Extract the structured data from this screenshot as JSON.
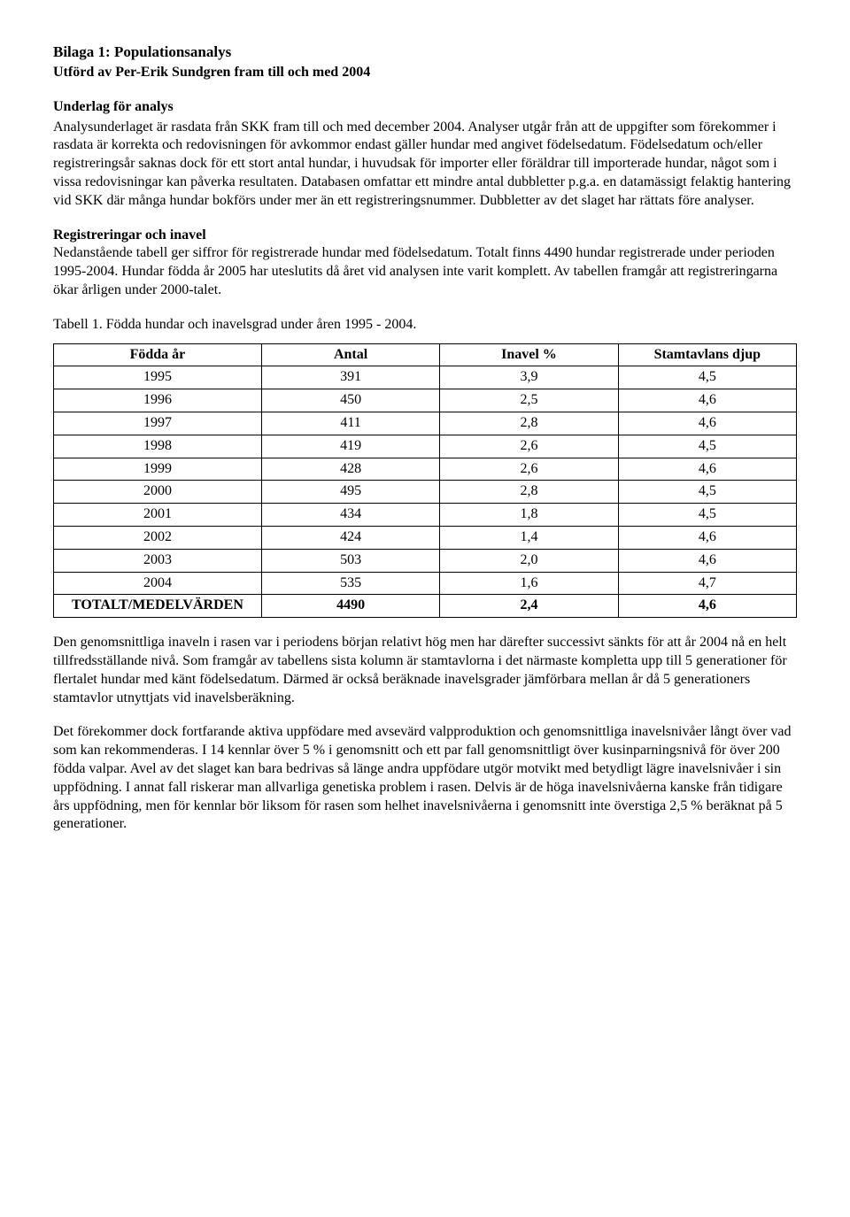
{
  "doc": {
    "title": "Bilaga 1: Populationsanalys",
    "subtitle": "Utförd av Per-Erik Sundgren fram till och med 2004",
    "section1_heading": "Underlag för analys",
    "section1_body": "Analysunderlaget är rasdata från SKK fram till och med december 2004. Analyser utgår från att de uppgifter som förekommer i rasdata är korrekta och redovisningen för avkommor endast gäller hundar med angivet födelsedatum. Födelsedatum och/eller registreringsår saknas dock för ett stort antal hundar, i huvudsak för importer eller föräldrar till importerade hundar, något som i vissa redovisningar kan påverka resultaten. Databasen omfattar ett mindre antal dubbletter p.g.a. en datamässigt felaktig hantering vid SKK där många hundar bokförs under mer än ett registreringsnummer. Dubbletter av det slaget har rättats före analyser.",
    "section2_heading": "Registreringar och inavel",
    "section2_body": "Nedanstående tabell ger siffror för registrerade hundar med födelsedatum. Totalt finns 4490 hundar registrerade under perioden 1995-2004. Hundar födda år 2005 har uteslutits då året vid analysen inte varit komplett. Av tabellen framgår att registreringarna ökar årligen under 2000-talet.",
    "table_caption": "Tabell 1. Födda hundar och inavelsgrad under åren 1995 - 2004.",
    "after1": "Den genomsnittliga inaveln i rasen var i periodens början relativt hög men har därefter successivt sänkts för att år 2004 nå en helt tillfredsställande nivå. Som framgår av tabellens sista kolumn är stamtavlorna i det närmaste kompletta upp till 5 generationer för flertalet hundar med känt födelsedatum. Därmed är också beräknade inavelsgrader jämförbara mellan år då 5 generationers stamtavlor utnyttjats vid inavelsberäkning.",
    "after2": "Det förekommer dock fortfarande aktiva uppfödare med avsevärd valpproduktion och genomsnittliga inavelsnivåer långt över vad som kan rekommenderas. I 14 kennlar över 5 % i genomsnitt och ett par fall genomsnittligt över kusinparningsnivå för över 200 födda valpar. Avel av det slaget kan bara bedrivas så länge andra uppfödare utgör motvikt med betydligt lägre inavelsnivåer i sin uppfödning. I annat fall riskerar man allvarliga genetiska problem i rasen. Delvis är de höga inavelsnivåerna kanske från tidigare års uppfödning, men för kennlar bör liksom för rasen som helhet inavelsnivåerna i genomsnitt inte överstiga 2,5 % beräknat på 5 generationer."
  },
  "table": {
    "columns": [
      "Födda år",
      "Antal",
      "Inavel %",
      "Stamtavlans djup"
    ],
    "col_widths_pct": [
      28,
      24,
      24,
      24
    ],
    "rows": [
      [
        "1995",
        "391",
        "3,9",
        "4,5"
      ],
      [
        "1996",
        "450",
        "2,5",
        "4,6"
      ],
      [
        "1997",
        "411",
        "2,8",
        "4,6"
      ],
      [
        "1998",
        "419",
        "2,6",
        "4,5"
      ],
      [
        "1999",
        "428",
        "2,6",
        "4,6"
      ],
      [
        "2000",
        "495",
        "2,8",
        "4,5"
      ],
      [
        "2001",
        "434",
        "1,8",
        "4,5"
      ],
      [
        "2002",
        "424",
        "1,4",
        "4,6"
      ],
      [
        "2003",
        "503",
        "2,0",
        "4,6"
      ],
      [
        "2004",
        "535",
        "1,6",
        "4,7"
      ]
    ],
    "total_row": [
      "TOTALT/MEDELVÄRDEN",
      "4490",
      "2,4",
      "4,6"
    ],
    "border_color": "#000000",
    "background_color": "#ffffff",
    "font_size_pt": 12
  }
}
